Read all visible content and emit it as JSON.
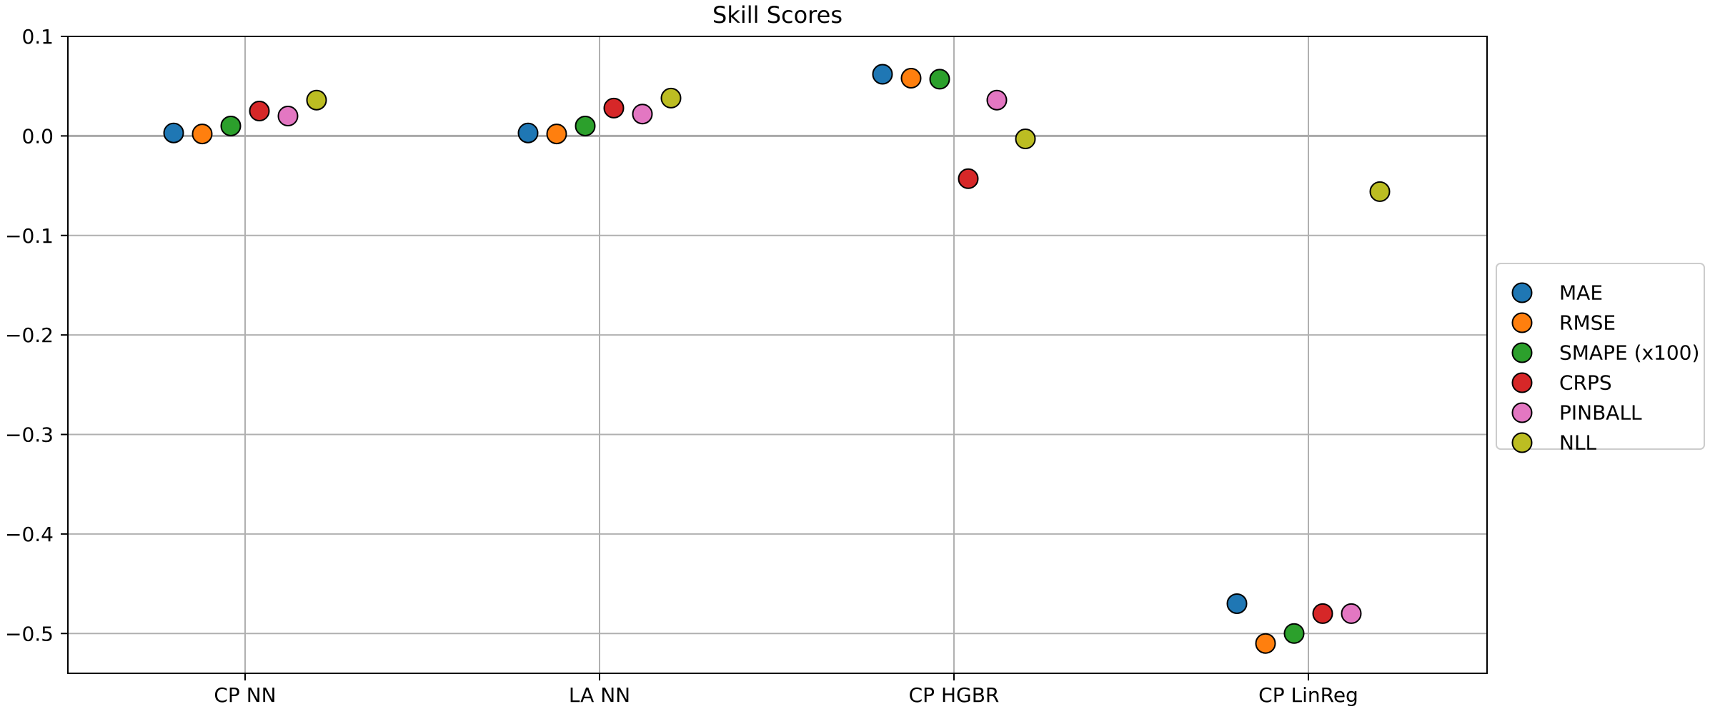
{
  "chart_data": {
    "type": "scatter",
    "title": "Skill Scores",
    "xlabel": "",
    "ylabel": "",
    "categories": [
      "CP NN",
      "LA NN",
      "CP HGBR",
      "CP LinReg"
    ],
    "ylim": [
      -0.54,
      0.1
    ],
    "yticks": [
      {
        "value": 0.1,
        "label": "0.1"
      },
      {
        "value": 0.0,
        "label": "0.0"
      },
      {
        "value": -0.1,
        "label": "−0.1"
      },
      {
        "value": -0.2,
        "label": "−0.2"
      },
      {
        "value": -0.3,
        "label": "−0.3"
      },
      {
        "value": -0.4,
        "label": "−0.4"
      },
      {
        "value": -0.5,
        "label": "−0.5"
      }
    ],
    "grid": true,
    "legend_position": "right",
    "reference_line": 0.0,
    "series": [
      {
        "name": "MAE",
        "color": "#1f77b4",
        "values": [
          0.003,
          0.003,
          0.062,
          -0.47
        ]
      },
      {
        "name": "RMSE",
        "color": "#ff7f0e",
        "values": [
          0.002,
          0.002,
          0.058,
          -0.51
        ]
      },
      {
        "name": "SMAPE (x100)",
        "color": "#2ca02c",
        "values": [
          0.01,
          0.01,
          0.057,
          -0.5
        ]
      },
      {
        "name": "CRPS",
        "color": "#d62728",
        "values": [
          0.025,
          0.028,
          -0.043,
          -0.48
        ]
      },
      {
        "name": "PINBALL",
        "color": "#e377c2",
        "values": [
          0.02,
          0.022,
          0.036,
          -0.48
        ]
      },
      {
        "name": "NLL",
        "color": "#bcbd22",
        "values": [
          0.036,
          0.038,
          -0.003,
          -0.056
        ]
      }
    ]
  }
}
